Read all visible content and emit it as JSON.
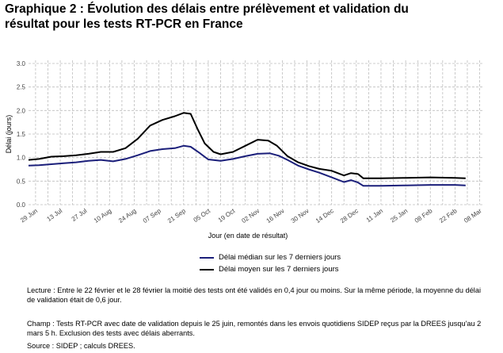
{
  "title": "Graphique 2 : Évolution des délais entre prélèvement et validation du résultat pour les tests RT-PCR en France",
  "legend": {
    "median_label": "Délai médian sur les 7 derniers jours",
    "mean_label": "Délai moyen sur les 7 derniers jours"
  },
  "notes": {
    "lecture": "Lecture : Entre le 22 février et le 28 février la moitié des tests ont été validés en 0,4 jour ou moins. Sur la même période, la moyenne du délai de validation était de 0,6 jour.",
    "champ": "Champ : Tests RT-PCR avec date de validation depuis le 25 juin, remontés dans les envois quotidiens SIDEP reçus par la DREES jusqu'au 2 mars 5 h. Exclusion des tests avec délais aberrants.",
    "source": "Source : SIDEP ; calculs DREES."
  },
  "colors": {
    "median": "#1b1f7a",
    "mean": "#000000",
    "grid": "#bdbdbd"
  },
  "chart_data": {
    "type": "line",
    "xlabel": "Jour (en date de résultat)",
    "ylabel": "Délai (jours)",
    "ylim": [
      0,
      3.0
    ],
    "yticks": [
      "0.0",
      "0.5",
      "1.0",
      "1.5",
      "2.0",
      "2.5",
      "3.0"
    ],
    "xlim": [
      "2020-06-25",
      "2021-03-10"
    ],
    "xticks": [
      {
        "date": "2020-06-29",
        "label": "29 Jun"
      },
      {
        "date": "2020-07-13",
        "label": "13 Jul"
      },
      {
        "date": "2020-07-27",
        "label": "27 Jul"
      },
      {
        "date": "2020-08-10",
        "label": "10 Aug"
      },
      {
        "date": "2020-08-24",
        "label": "24 Aug"
      },
      {
        "date": "2020-09-07",
        "label": "07 Sep"
      },
      {
        "date": "2020-09-21",
        "label": "21 Sep"
      },
      {
        "date": "2020-10-05",
        "label": "05 Oct"
      },
      {
        "date": "2020-10-19",
        "label": "19 Oct"
      },
      {
        "date": "2020-11-02",
        "label": "02 Nov"
      },
      {
        "date": "2020-11-16",
        "label": "16 Nov"
      },
      {
        "date": "2020-11-30",
        "label": "30 Nov"
      },
      {
        "date": "2020-12-14",
        "label": "14 Dec"
      },
      {
        "date": "2020-12-28",
        "label": "28 Dec"
      },
      {
        "date": "2021-01-11",
        "label": "11 Jan"
      },
      {
        "date": "2021-01-25",
        "label": "25 Jan"
      },
      {
        "date": "2021-02-08",
        "label": "08 Feb"
      },
      {
        "date": "2021-02-22",
        "label": "22 Feb"
      },
      {
        "date": "2021-03-08",
        "label": "08 Mar"
      }
    ],
    "grid": true,
    "legend_position": "bottom",
    "series": [
      {
        "name": "Délai médian sur les 7 derniers jours",
        "points": [
          [
            "2020-06-25",
            0.83
          ],
          [
            "2020-07-01",
            0.84
          ],
          [
            "2020-07-08",
            0.86
          ],
          [
            "2020-07-15",
            0.88
          ],
          [
            "2020-07-22",
            0.9
          ],
          [
            "2020-07-29",
            0.93
          ],
          [
            "2020-08-05",
            0.95
          ],
          [
            "2020-08-12",
            0.92
          ],
          [
            "2020-08-19",
            0.97
          ],
          [
            "2020-08-26",
            1.05
          ],
          [
            "2020-09-02",
            1.14
          ],
          [
            "2020-09-09",
            1.18
          ],
          [
            "2020-09-16",
            1.2
          ],
          [
            "2020-09-21",
            1.25
          ],
          [
            "2020-09-25",
            1.23
          ],
          [
            "2020-09-30",
            1.1
          ],
          [
            "2020-10-05",
            0.96
          ],
          [
            "2020-10-12",
            0.93
          ],
          [
            "2020-10-19",
            0.97
          ],
          [
            "2020-10-26",
            1.03
          ],
          [
            "2020-11-02",
            1.08
          ],
          [
            "2020-11-09",
            1.09
          ],
          [
            "2020-11-14",
            1.04
          ],
          [
            "2020-11-19",
            0.95
          ],
          [
            "2020-11-25",
            0.83
          ],
          [
            "2020-12-01",
            0.75
          ],
          [
            "2020-12-07",
            0.68
          ],
          [
            "2020-12-14",
            0.58
          ],
          [
            "2020-12-21",
            0.48
          ],
          [
            "2020-12-25",
            0.52
          ],
          [
            "2020-12-29",
            0.47
          ],
          [
            "2021-01-01",
            0.4
          ],
          [
            "2021-01-11",
            0.4
          ],
          [
            "2021-01-25",
            0.41
          ],
          [
            "2021-02-08",
            0.42
          ],
          [
            "2021-02-22",
            0.42
          ],
          [
            "2021-02-28",
            0.41
          ]
        ]
      },
      {
        "name": "Délai moyen sur les 7 derniers jours",
        "points": [
          [
            "2020-06-25",
            0.95
          ],
          [
            "2020-07-01",
            0.97
          ],
          [
            "2020-07-08",
            1.02
          ],
          [
            "2020-07-15",
            1.03
          ],
          [
            "2020-07-22",
            1.05
          ],
          [
            "2020-07-29",
            1.08
          ],
          [
            "2020-08-05",
            1.12
          ],
          [
            "2020-08-12",
            1.12
          ],
          [
            "2020-08-19",
            1.2
          ],
          [
            "2020-08-26",
            1.4
          ],
          [
            "2020-09-02",
            1.68
          ],
          [
            "2020-09-09",
            1.8
          ],
          [
            "2020-09-16",
            1.88
          ],
          [
            "2020-09-21",
            1.95
          ],
          [
            "2020-09-25",
            1.93
          ],
          [
            "2020-09-29",
            1.6
          ],
          [
            "2020-10-03",
            1.3
          ],
          [
            "2020-10-08",
            1.12
          ],
          [
            "2020-10-12",
            1.07
          ],
          [
            "2020-10-19",
            1.12
          ],
          [
            "2020-10-26",
            1.25
          ],
          [
            "2020-11-02",
            1.38
          ],
          [
            "2020-11-08",
            1.36
          ],
          [
            "2020-11-13",
            1.25
          ],
          [
            "2020-11-19",
            1.03
          ],
          [
            "2020-11-25",
            0.9
          ],
          [
            "2020-12-01",
            0.82
          ],
          [
            "2020-12-07",
            0.76
          ],
          [
            "2020-12-14",
            0.72
          ],
          [
            "2020-12-21",
            0.62
          ],
          [
            "2020-12-25",
            0.67
          ],
          [
            "2020-12-29",
            0.65
          ],
          [
            "2021-01-01",
            0.56
          ],
          [
            "2021-01-11",
            0.56
          ],
          [
            "2021-01-25",
            0.57
          ],
          [
            "2021-02-08",
            0.58
          ],
          [
            "2021-02-22",
            0.57
          ],
          [
            "2021-02-28",
            0.56
          ]
        ]
      }
    ]
  }
}
